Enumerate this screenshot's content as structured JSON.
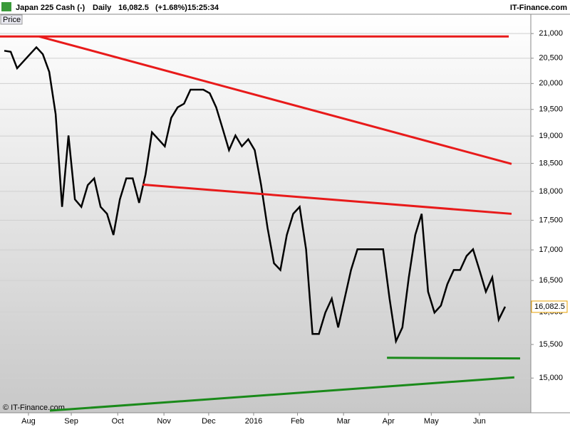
{
  "chart_data": {
    "type": "line",
    "header": {
      "instrument": "Japan 225 Cash (-)",
      "period": "Daily",
      "last_price": "16,082.5",
      "change": "(+1.68%)",
      "time": "15:25:34",
      "brand": "IT-Finance.com"
    },
    "panel_label": "Price",
    "copyright": "© IT-Finance.com",
    "log_scale": true,
    "grid": true,
    "xlim": [
      0,
      248
    ],
    "xticks": [
      {
        "value": 13.3,
        "label": "Aug"
      },
      {
        "value": 33.3,
        "label": "Sep"
      },
      {
        "value": 55,
        "label": "Oct"
      },
      {
        "value": 76.6,
        "label": "Nov"
      },
      {
        "value": 97.5,
        "label": "Dec"
      },
      {
        "value": 118.5,
        "label": "2016"
      },
      {
        "value": 139,
        "label": "Feb"
      },
      {
        "value": 160.5,
        "label": "Mar"
      },
      {
        "value": 181.5,
        "label": "Apr"
      },
      {
        "value": 201.5,
        "label": "May"
      },
      {
        "value": 224,
        "label": "Jun"
      }
    ],
    "ylim": [
      14500,
      21400
    ],
    "yticks": [
      {
        "value": 15000,
        "label": "15,000"
      },
      {
        "value": 15500,
        "label": "15,500"
      },
      {
        "value": 16000,
        "label": "16,000"
      },
      {
        "value": 16500,
        "label": "16,500"
      },
      {
        "value": 17000,
        "label": "17,000"
      },
      {
        "value": 17500,
        "label": "17,500"
      },
      {
        "value": 18000,
        "label": "18,000"
      },
      {
        "value": 18500,
        "label": "18,500"
      },
      {
        "value": 19000,
        "label": "19,000"
      },
      {
        "value": 19500,
        "label": "19,500"
      },
      {
        "value": 20000,
        "label": "20,000"
      },
      {
        "value": 20500,
        "label": "20,500"
      },
      {
        "value": 21000,
        "label": "21,000"
      }
    ],
    "series": [
      {
        "color": "#000000",
        "x": [
          2,
          5,
          8,
          11,
          14,
          17,
          20,
          23,
          26,
          29,
          32,
          35,
          38,
          41,
          44,
          47,
          50,
          53,
          56,
          59,
          62,
          65,
          68,
          71,
          74,
          77,
          80,
          83,
          86,
          89,
          92,
          95,
          98,
          101,
          104,
          107,
          110,
          113,
          116,
          119,
          122,
          125,
          128,
          131,
          134,
          137,
          140,
          143,
          146,
          149,
          152,
          155,
          158,
          161,
          164,
          167,
          170,
          173,
          176,
          179,
          182,
          185,
          188,
          191,
          194,
          197,
          200,
          203,
          206,
          209,
          212,
          215,
          218,
          221,
          224,
          227,
          230,
          233,
          236
        ],
        "values": [
          20650,
          20630,
          20300,
          20440,
          20580,
          20720,
          20580,
          20230,
          19410,
          17730,
          19010,
          17860,
          17730,
          18110,
          18230,
          17730,
          17610,
          17250,
          17860,
          18230,
          18230,
          17800,
          18300,
          19070,
          18940,
          18810,
          19340,
          19540,
          19610,
          19880,
          19880,
          19880,
          19810,
          19540,
          19140,
          18740,
          19010,
          18810,
          18940,
          18740,
          18110,
          17370,
          16780,
          16670,
          17250,
          17610,
          17730,
          17010,
          15660,
          15660,
          15990,
          16210,
          15760,
          16210,
          16670,
          17010,
          17010,
          17010,
          17010,
          17010,
          16210,
          15550,
          15760,
          16550,
          17250,
          17610,
          16320,
          15990,
          16100,
          16440,
          16670,
          16670,
          16900,
          17010,
          16670,
          16320,
          16550,
          15880,
          16082.5
        ]
      }
    ],
    "trendlines": [
      {
        "color": "#e81a1a",
        "x": [
          0,
          237.7
        ],
        "values": [
          20940,
          20940
        ]
      },
      {
        "color": "#e81a1a",
        "x": [
          18.3,
          239
        ],
        "values": [
          20940,
          18490
        ]
      },
      {
        "color": "#e81a1a",
        "x": [
          66.6,
          239
        ],
        "values": [
          18120,
          17610
        ]
      },
      {
        "color": "#1a8a1a",
        "x": [
          23.3,
          240.3
        ],
        "values": [
          14530,
          15010
        ]
      },
      {
        "color": "#1a8a1a",
        "x": [
          180.8,
          243
        ],
        "values": [
          15300,
          15290
        ]
      }
    ]
  }
}
